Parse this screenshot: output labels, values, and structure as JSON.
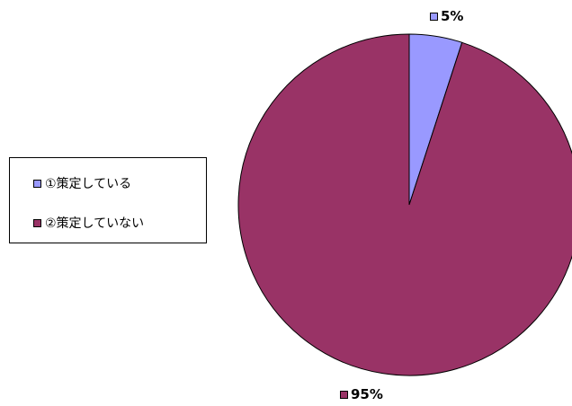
{
  "chart_data": {
    "type": "pie",
    "categories": [
      "①策定している",
      "②策定していない"
    ],
    "values": [
      5,
      95
    ],
    "data_labels": [
      "5%",
      "95%"
    ],
    "colors": [
      "#9999ff",
      "#993366"
    ],
    "start_angle_deg": 0,
    "direction": "clockwise",
    "legend_position": "left"
  }
}
